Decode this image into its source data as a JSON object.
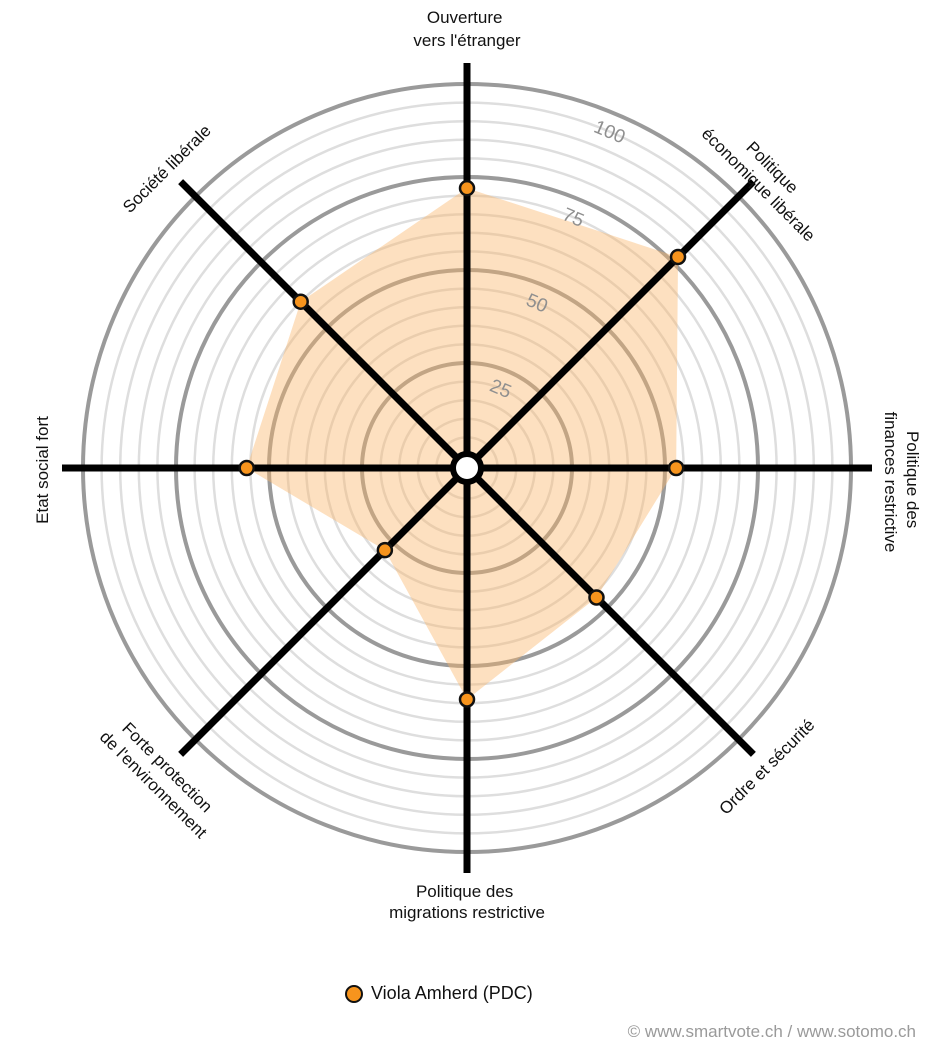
{
  "chart_data": {
    "type": "radar",
    "axes": [
      {
        "label": [
          "Ouverture",
          "vers l'étranger"
        ],
        "value": 72
      },
      {
        "label": [
          "Politique",
          "économique libérale"
        ],
        "value": 77
      },
      {
        "label": [
          "Politique des",
          "finances restrictive"
        ],
        "value": 53
      },
      {
        "label": [
          "Ordre et sécurité"
        ],
        "value": 46
      },
      {
        "label": [
          "Politique des",
          "migrations restrictive"
        ],
        "value": 59
      },
      {
        "label": [
          "Forte protection",
          "de l'environnement"
        ],
        "value": 28
      },
      {
        "label": [
          "Etat social fort"
        ],
        "value": 56
      },
      {
        "label": [
          "Société libérale"
        ],
        "value": 60
      }
    ],
    "range": [
      0,
      100
    ],
    "major_ticks": [
      "25",
      "50",
      "75",
      "100"
    ],
    "minor_step": 5,
    "series": [
      {
        "name": "Viola Amherd (PDC)",
        "color": "#f7941d",
        "fill": "#fcd9ad"
      }
    ]
  },
  "legend": {
    "label": "Viola Amherd (PDC)"
  },
  "credit": "© www.smartvote.ch / www.sotomo.ch"
}
